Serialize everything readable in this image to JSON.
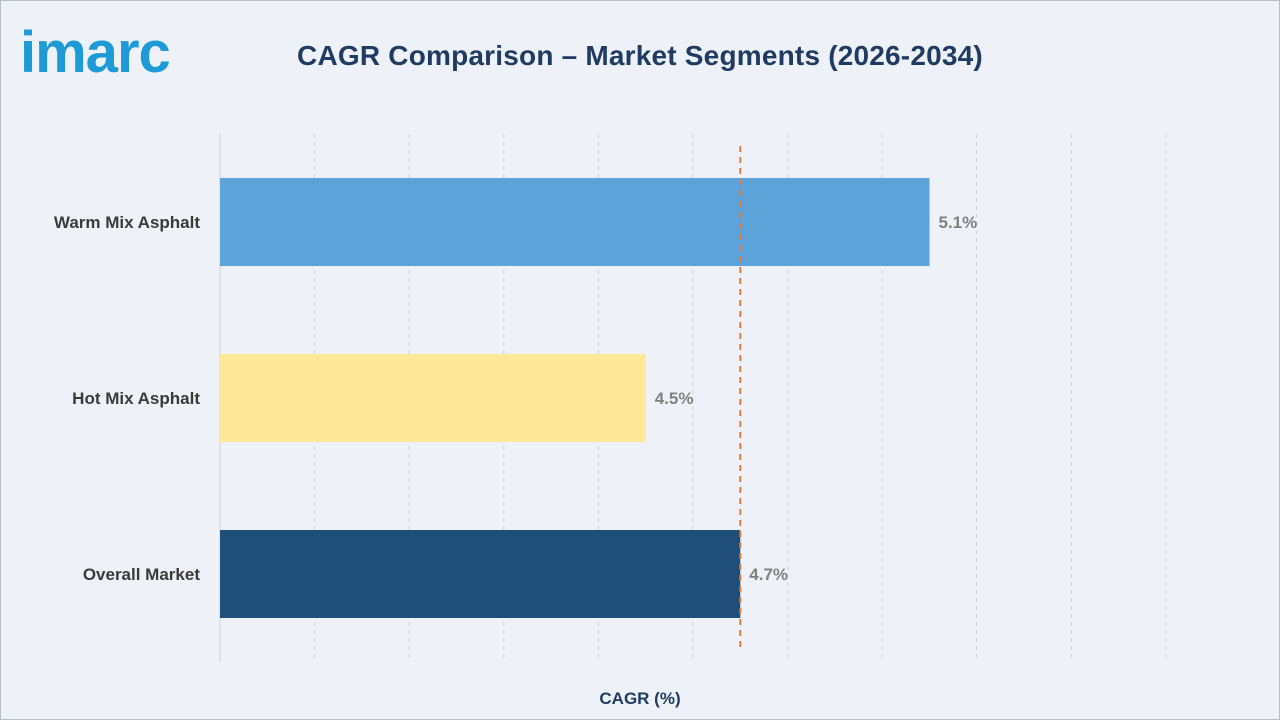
{
  "brand": {
    "logo_text": "imarc",
    "color": "#1e9ad6"
  },
  "chart_data": {
    "type": "bar",
    "orientation": "horizontal",
    "title": "CAGR Comparison – Market Segments (2026-2034)",
    "xlabel": "CAGR (%)",
    "ylabel": "",
    "categories": [
      "Warm Mix Asphalt",
      "Hot Mix Asphalt",
      "Overall Market"
    ],
    "values": [
      5.1,
      4.5,
      4.7
    ],
    "value_labels": [
      "5.1%",
      "4.5%",
      "4.7%"
    ],
    "colors": [
      "#5ba3d9",
      "#ffe89a",
      "#1f4e79"
    ],
    "reference_line": {
      "value": 4.7,
      "style": "dashed",
      "color": "#e07b39"
    },
    "xlim": [
      3.6,
      5.6
    ],
    "grid": true
  }
}
